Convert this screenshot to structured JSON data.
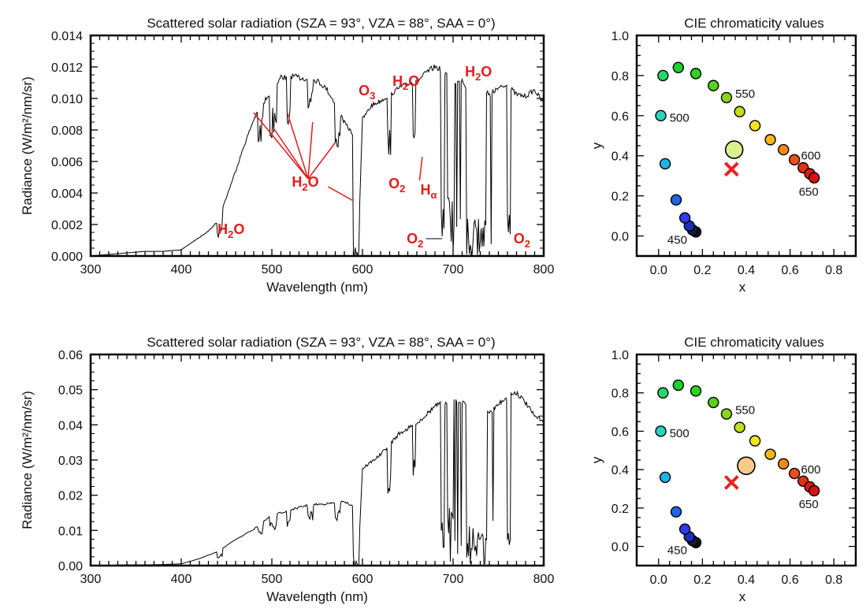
{
  "chart_data": [
    {
      "id": "spectrum_top",
      "type": "line",
      "title": "Scattered solar radiation (SZA = 93°, VZA = 88°, SAA =  0°)",
      "xlabel": "Wavelength (nm)",
      "ylabel": "Radiance (W/m²/nm/sr)",
      "xlim": [
        300,
        800
      ],
      "ylim": [
        0,
        0.014
      ],
      "xticks": [
        300,
        400,
        500,
        600,
        700,
        800
      ],
      "yticks": [
        "0.000",
        "0.002",
        "0.004",
        "0.006",
        "0.008",
        "0.010",
        "0.012",
        "0.014"
      ],
      "series": [
        {
          "x": [
            300,
            320,
            340,
            360,
            380,
            400,
            410,
            420,
            430,
            440,
            450,
            460,
            470,
            480,
            490,
            500,
            510,
            520,
            530,
            540,
            550,
            560,
            570,
            580,
            590,
            595,
            600,
            610,
            620,
            630,
            640,
            650,
            660,
            670,
            680,
            690,
            700,
            710,
            720,
            730,
            740,
            750,
            760,
            770,
            780,
            790,
            800
          ],
          "y": [
            0.0,
            0.0001,
            0.0002,
            0.0003,
            0.0003,
            0.0004,
            0.0008,
            0.0012,
            0.0016,
            0.0022,
            0.0038,
            0.0055,
            0.0072,
            0.0088,
            0.0098,
            0.0107,
            0.0115,
            0.0116,
            0.0115,
            0.0114,
            0.0113,
            0.0108,
            0.0098,
            0.0086,
            0.0078,
            0.0,
            0.0088,
            0.0097,
            0.01,
            0.0104,
            0.0108,
            0.0111,
            0.0112,
            0.0118,
            0.0122,
            0.0119,
            0.0112,
            0.0113,
            0.0102,
            0.0108,
            0.0104,
            0.0108,
            0.011,
            0.0104,
            0.0103,
            0.0107,
            0.0098
          ]
        }
      ],
      "annotations": [
        {
          "text": "O3",
          "x": 605,
          "y": 0.0102
        },
        {
          "text": "H2O",
          "x": 648,
          "y": 0.0108
        },
        {
          "text": "H2O",
          "x": 728,
          "y": 0.0114
        },
        {
          "text": "H2O",
          "x": 537,
          "y": 0.0044
        },
        {
          "text": "O2",
          "x": 638,
          "y": 0.0043
        },
        {
          "text": "Hα",
          "x": 673,
          "y": 0.0039
        },
        {
          "text": "H2O",
          "x": 455,
          "y": 0.0014
        },
        {
          "text": "O2",
          "x": 658,
          "y": 0.0008
        },
        {
          "text": "O2",
          "x": 776,
          "y": 0.0008
        }
      ]
    },
    {
      "id": "cie_top",
      "type": "scatter",
      "title": "CIE chromaticity values",
      "xlabel": "x",
      "ylabel": "y",
      "xlim": [
        -0.1,
        0.9
      ],
      "ylim": [
        -0.1,
        1.0
      ],
      "xticks": [
        "0.0",
        "0.2",
        "0.4",
        "0.6",
        "0.8"
      ],
      "yticks": [
        "0.0",
        "0.2",
        "0.4",
        "0.6",
        "0.8",
        "1.0"
      ],
      "locus": [
        {
          "x": 0.17,
          "y": 0.02,
          "c": "#111111"
        },
        {
          "x": 0.155,
          "y": 0.03,
          "c": "#1a1a40"
        },
        {
          "x": 0.14,
          "y": 0.05,
          "c": "#1c2fb8"
        },
        {
          "x": 0.12,
          "y": 0.09,
          "c": "#2a3ef0"
        },
        {
          "x": 0.08,
          "y": 0.18,
          "c": "#1f63e6"
        },
        {
          "x": 0.03,
          "y": 0.36,
          "c": "#1fb2e6"
        },
        {
          "x": 0.01,
          "y": 0.6,
          "c": "#2ed3c0"
        },
        {
          "x": 0.02,
          "y": 0.8,
          "c": "#25d96c"
        },
        {
          "x": 0.09,
          "y": 0.84,
          "c": "#1ad22a"
        },
        {
          "x": 0.17,
          "y": 0.81,
          "c": "#2fd21f"
        },
        {
          "x": 0.25,
          "y": 0.75,
          "c": "#58d11e"
        },
        {
          "x": 0.31,
          "y": 0.69,
          "c": "#8bd41c"
        },
        {
          "x": 0.37,
          "y": 0.62,
          "c": "#c5dd1c"
        },
        {
          "x": 0.44,
          "y": 0.55,
          "c": "#f2e61d"
        },
        {
          "x": 0.51,
          "y": 0.48,
          "c": "#f8b61a"
        },
        {
          "x": 0.57,
          "y": 0.43,
          "c": "#f58a17"
        },
        {
          "x": 0.62,
          "y": 0.38,
          "c": "#f04e14"
        },
        {
          "x": 0.66,
          "y": 0.34,
          "c": "#e53113"
        },
        {
          "x": 0.69,
          "y": 0.31,
          "c": "#e11b12"
        },
        {
          "x": 0.71,
          "y": 0.29,
          "c": "#d81212"
        }
      ],
      "wavelength_labels": [
        {
          "text": "450",
          "x": 0.04,
          "y": -0.02
        },
        {
          "text": "500",
          "x": 0.05,
          "y": 0.59
        },
        {
          "text": "550",
          "x": 0.35,
          "y": 0.71
        },
        {
          "text": "600",
          "x": 0.65,
          "y": 0.4
        },
        {
          "text": "650",
          "x": 0.64,
          "y": 0.22
        }
      ],
      "point": {
        "x": 0.345,
        "y": 0.43,
        "color": "#d9f08c"
      },
      "white_point": {
        "x": 0.333,
        "y": 0.333
      }
    },
    {
      "id": "spectrum_bottom",
      "type": "line",
      "title": "Scattered solar radiation (SZA = 93°, VZA = 88°, SAA =  0°)",
      "xlabel": "Wavelength (nm)",
      "ylabel": "Radiance (W/m²/nm/sr)",
      "xlim": [
        300,
        800
      ],
      "ylim": [
        0,
        0.06
      ],
      "xticks": [
        300,
        400,
        500,
        600,
        700,
        800
      ],
      "yticks": [
        "0.00",
        "0.01",
        "0.02",
        "0.03",
        "0.04",
        "0.05",
        "0.06"
      ],
      "series": [
        {
          "x": [
            300,
            320,
            340,
            360,
            380,
            400,
            420,
            440,
            460,
            480,
            500,
            520,
            540,
            560,
            580,
            590,
            595,
            600,
            620,
            640,
            660,
            680,
            700,
            720,
            740,
            760,
            770,
            780,
            790,
            800
          ],
          "y": [
            0.0,
            0.0001,
            0.0002,
            0.0002,
            0.0003,
            0.0005,
            0.002,
            0.004,
            0.0075,
            0.0105,
            0.0145,
            0.016,
            0.0175,
            0.0178,
            0.0185,
            0.017,
            0.0,
            0.028,
            0.032,
            0.038,
            0.041,
            0.046,
            0.048,
            0.046,
            0.044,
            0.049,
            0.05,
            0.047,
            0.043,
            0.042
          ]
        }
      ]
    },
    {
      "id": "cie_bottom",
      "type": "scatter",
      "title": "CIE chromaticity values",
      "xlabel": "x",
      "ylabel": "y",
      "xlim": [
        -0.1,
        0.9
      ],
      "ylim": [
        -0.1,
        1.0
      ],
      "xticks": [
        "0.0",
        "0.2",
        "0.4",
        "0.6",
        "0.8"
      ],
      "yticks": [
        "0.0",
        "0.2",
        "0.4",
        "0.6",
        "0.8",
        "1.0"
      ],
      "locus_same_as": "cie_top",
      "wavelength_labels": [
        {
          "text": "450",
          "x": 0.04,
          "y": -0.02
        },
        {
          "text": "500",
          "x": 0.05,
          "y": 0.59
        },
        {
          "text": "550",
          "x": 0.35,
          "y": 0.71
        },
        {
          "text": "600",
          "x": 0.65,
          "y": 0.4
        },
        {
          "text": "650",
          "x": 0.64,
          "y": 0.22
        }
      ],
      "point": {
        "x": 0.4,
        "y": 0.42,
        "color": "#f7c98a"
      },
      "white_point": {
        "x": 0.333,
        "y": 0.333
      }
    }
  ],
  "colors": {
    "annotation": "#e21b1b",
    "line": "#000000",
    "white_point": "#e8251f"
  }
}
